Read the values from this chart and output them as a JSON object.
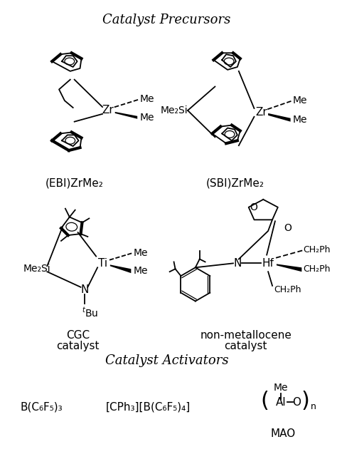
{
  "bg_color": "#ffffff",
  "figsize": [
    4.74,
    6.65
  ],
  "dpi": 100,
  "section1_title": "Catalyst Precursors",
  "section2_title": "Catalyst Activators",
  "label_EBI": "(EBI)ZrMe₂",
  "label_SBI": "(SBI)ZrMe₂",
  "label_CGC1": "CGC",
  "label_CGC2": "catalyst",
  "label_nonmet1": "non-metallocene",
  "label_nonmet2": "catalyst",
  "activator1": "B(C₆F₅)₃",
  "activator2": "[CPh₃][B(C₆F₅)₄]",
  "activator3_label": "MAO",
  "Me2Si": "Me₂Si",
  "tBu": "$^t$Bu"
}
